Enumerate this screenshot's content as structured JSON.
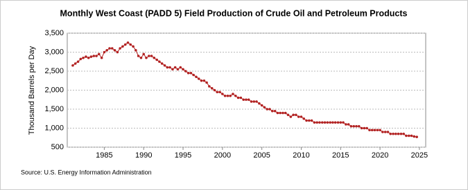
{
  "chart_data": {
    "type": "line",
    "title": "Monthly West Coast (PADD 5) Field Production of Crude Oil and Petroleum Products",
    "y_label": "Thousand Barrels per Day",
    "source": "Source: U.S. Energy Information Administration",
    "x": [
      1981,
      1981.33,
      1981.67,
      1982,
      1982.33,
      1982.67,
      1983,
      1983.33,
      1983.67,
      1984,
      1984.33,
      1984.67,
      1985,
      1985.33,
      1985.67,
      1986,
      1986.33,
      1986.67,
      1987,
      1987.33,
      1987.67,
      1988,
      1988.33,
      1988.67,
      1989,
      1989.33,
      1989.67,
      1990,
      1990.33,
      1990.67,
      1991,
      1991.33,
      1991.67,
      1992,
      1992.33,
      1992.67,
      1993,
      1993.33,
      1993.67,
      1994,
      1994.33,
      1994.67,
      1995,
      1995.33,
      1995.67,
      1996,
      1996.33,
      1996.67,
      1997,
      1997.33,
      1997.67,
      1998,
      1998.33,
      1998.67,
      1999,
      1999.33,
      1999.67,
      2000,
      2000.33,
      2000.67,
      2001,
      2001.33,
      2001.67,
      2002,
      2002.33,
      2002.67,
      2003,
      2003.33,
      2003.67,
      2004,
      2004.33,
      2004.67,
      2005,
      2005.33,
      2005.67,
      2006,
      2006.33,
      2006.67,
      2007,
      2007.33,
      2007.67,
      2008,
      2008.33,
      2008.67,
      2009,
      2009.33,
      2009.67,
      2010,
      2010.33,
      2010.67,
      2011,
      2011.33,
      2011.67,
      2012,
      2012.33,
      2012.67,
      2013,
      2013.33,
      2013.67,
      2014,
      2014.33,
      2014.67,
      2015,
      2015.33,
      2015.67,
      2016,
      2016.33,
      2016.67,
      2017,
      2017.33,
      2017.67,
      2018,
      2018.33,
      2018.67,
      2019,
      2019.33,
      2019.67,
      2020,
      2020.33,
      2020.67,
      2021,
      2021.33,
      2021.67,
      2022,
      2022.33,
      2022.67,
      2023,
      2023.33,
      2023.67,
      2024,
      2024.33,
      2024.67
    ],
    "series": [
      {
        "name": "West Coast Field Production",
        "color": "#b22222",
        "values": [
          2650,
          2700,
          2750,
          2820,
          2850,
          2880,
          2850,
          2880,
          2900,
          2900,
          2950,
          2850,
          3000,
          3050,
          3100,
          3100,
          3050,
          3000,
          3100,
          3150,
          3200,
          3250,
          3200,
          3150,
          3050,
          2900,
          2850,
          2950,
          2850,
          2900,
          2900,
          2850,
          2800,
          2750,
          2700,
          2650,
          2600,
          2600,
          2550,
          2600,
          2550,
          2600,
          2550,
          2500,
          2450,
          2450,
          2400,
          2350,
          2300,
          2250,
          2250,
          2200,
          2100,
          2050,
          2000,
          1950,
          1950,
          1900,
          1850,
          1850,
          1850,
          1900,
          1850,
          1800,
          1800,
          1750,
          1750,
          1750,
          1700,
          1700,
          1700,
          1650,
          1600,
          1550,
          1500,
          1500,
          1450,
          1450,
          1400,
          1400,
          1400,
          1400,
          1350,
          1300,
          1350,
          1350,
          1300,
          1300,
          1250,
          1200,
          1200,
          1200,
          1150,
          1150,
          1150,
          1150,
          1150,
          1150,
          1150,
          1150,
          1150,
          1150,
          1150,
          1150,
          1100,
          1100,
          1050,
          1050,
          1050,
          1050,
          1000,
          1000,
          1000,
          950,
          950,
          950,
          950,
          950,
          900,
          900,
          900,
          850,
          850,
          850,
          850,
          850,
          850,
          800,
          800,
          800,
          780,
          770
        ]
      }
    ],
    "xlim": [
      1980.3,
      2025.8
    ],
    "xticks": [
      1985,
      1990,
      1995,
      2000,
      2005,
      2010,
      2015,
      2020,
      2025
    ],
    "ylim": [
      500,
      3500
    ],
    "yticks": [
      {
        "value": 500,
        "label": "500"
      },
      {
        "value": 1000,
        "label": "1,000"
      },
      {
        "value": 1500,
        "label": "1,500"
      },
      {
        "value": 2000,
        "label": "2,000"
      },
      {
        "value": 2500,
        "label": "2,500"
      },
      {
        "value": 3000,
        "label": "3,000"
      },
      {
        "value": 3500,
        "label": "3,500"
      }
    ],
    "grid": true
  }
}
